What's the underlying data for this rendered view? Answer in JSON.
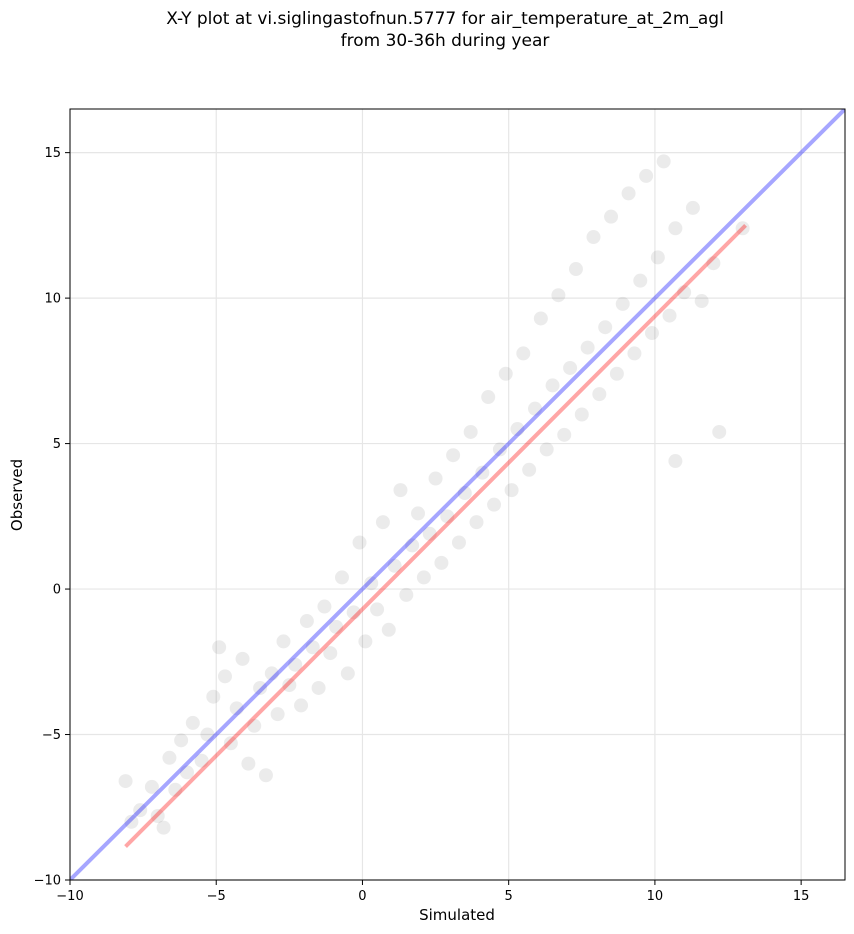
{
  "chart_data": {
    "type": "scatter",
    "title": "X-Y plot at vi.siglingastofnun.5777 for air_temperature_at_2m_agl",
    "subtitle": "from 30-36h during year",
    "xlabel": "Simulated",
    "ylabel": "Observed",
    "xlim": [
      -10,
      16.5
    ],
    "ylim": [
      -10,
      16.5
    ],
    "xticks": [
      "−10",
      "−5",
      "0",
      "5",
      "10",
      "15"
    ],
    "yticks": [
      "−10",
      "−5",
      "0",
      "5",
      "10",
      "15"
    ],
    "grid": true,
    "point_color": "#000000",
    "identity_line": {
      "x": [
        -10,
        16.5
      ],
      "y": [
        -10,
        16.5
      ],
      "color": "#0000ff"
    },
    "fit_line": {
      "x": [
        -8.1,
        13.1
      ],
      "y": [
        -8.85,
        12.5
      ],
      "color": "#ff0000"
    },
    "points": [
      [
        -8.1,
        -6.6
      ],
      [
        -7.9,
        -8.0
      ],
      [
        -7.6,
        -7.6
      ],
      [
        -7.2,
        -6.8
      ],
      [
        -7.0,
        -7.8
      ],
      [
        -6.8,
        -8.2
      ],
      [
        -6.6,
        -5.8
      ],
      [
        -6.4,
        -6.9
      ],
      [
        -6.2,
        -5.2
      ],
      [
        -6.0,
        -6.3
      ],
      [
        -5.8,
        -4.6
      ],
      [
        -5.5,
        -5.9
      ],
      [
        -5.3,
        -5.0
      ],
      [
        -5.1,
        -3.7
      ],
      [
        -4.9,
        -2.0
      ],
      [
        -4.7,
        -3.0
      ],
      [
        -4.5,
        -5.3
      ],
      [
        -4.3,
        -4.1
      ],
      [
        -4.1,
        -2.4
      ],
      [
        -3.9,
        -6.0
      ],
      [
        -3.7,
        -4.7
      ],
      [
        -3.5,
        -3.4
      ],
      [
        -3.3,
        -6.4
      ],
      [
        -3.1,
        -2.9
      ],
      [
        -2.9,
        -4.3
      ],
      [
        -2.7,
        -1.8
      ],
      [
        -2.5,
        -3.3
      ],
      [
        -2.3,
        -2.6
      ],
      [
        -2.1,
        -4.0
      ],
      [
        -1.9,
        -1.1
      ],
      [
        -1.7,
        -2.0
      ],
      [
        -1.5,
        -3.4
      ],
      [
        -1.3,
        -0.6
      ],
      [
        -1.1,
        -2.2
      ],
      [
        -0.9,
        -1.3
      ],
      [
        -0.7,
        0.4
      ],
      [
        -0.5,
        -2.9
      ],
      [
        -0.3,
        -0.8
      ],
      [
        -0.1,
        1.6
      ],
      [
        0.1,
        -1.8
      ],
      [
        0.3,
        0.2
      ],
      [
        0.5,
        -0.7
      ],
      [
        0.7,
        2.3
      ],
      [
        0.9,
        -1.4
      ],
      [
        1.1,
        0.8
      ],
      [
        1.3,
        3.4
      ],
      [
        1.5,
        -0.2
      ],
      [
        1.7,
        1.5
      ],
      [
        1.9,
        2.6
      ],
      [
        2.1,
        0.4
      ],
      [
        2.3,
        1.9
      ],
      [
        2.5,
        3.8
      ],
      [
        2.7,
        0.9
      ],
      [
        2.9,
        2.5
      ],
      [
        3.1,
        4.6
      ],
      [
        3.3,
        1.6
      ],
      [
        3.5,
        3.3
      ],
      [
        3.7,
        5.4
      ],
      [
        3.9,
        2.3
      ],
      [
        4.1,
        4.0
      ],
      [
        4.3,
        6.6
      ],
      [
        4.5,
        2.9
      ],
      [
        4.7,
        4.8
      ],
      [
        4.9,
        7.4
      ],
      [
        5.1,
        3.4
      ],
      [
        5.3,
        5.5
      ],
      [
        5.5,
        8.1
      ],
      [
        5.7,
        4.1
      ],
      [
        5.9,
        6.2
      ],
      [
        6.1,
        9.3
      ],
      [
        6.3,
        4.8
      ],
      [
        6.5,
        7.0
      ],
      [
        6.7,
        10.1
      ],
      [
        6.9,
        5.3
      ],
      [
        7.1,
        7.6
      ],
      [
        7.3,
        11.0
      ],
      [
        7.5,
        6.0
      ],
      [
        7.7,
        8.3
      ],
      [
        7.9,
        12.1
      ],
      [
        8.1,
        6.7
      ],
      [
        8.3,
        9.0
      ],
      [
        8.5,
        12.8
      ],
      [
        8.7,
        7.4
      ],
      [
        8.9,
        9.8
      ],
      [
        9.1,
        13.6
      ],
      [
        9.3,
        8.1
      ],
      [
        9.5,
        10.6
      ],
      [
        9.7,
        14.2
      ],
      [
        9.9,
        8.8
      ],
      [
        10.1,
        11.4
      ],
      [
        10.3,
        14.7
      ],
      [
        10.5,
        9.4
      ],
      [
        10.7,
        12.4
      ],
      [
        11.0,
        10.2
      ],
      [
        11.3,
        13.1
      ],
      [
        11.6,
        9.9
      ],
      [
        12.0,
        11.2
      ],
      [
        12.2,
        5.4
      ],
      [
        13.0,
        12.4
      ],
      [
        10.7,
        4.4
      ]
    ]
  }
}
